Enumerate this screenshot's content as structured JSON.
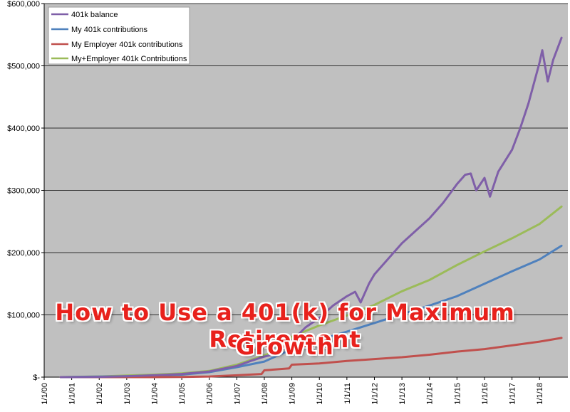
{
  "chart_data": {
    "type": "line",
    "title": "",
    "xlabel": "",
    "ylabel": "",
    "ylim": [
      0,
      600000
    ],
    "y_ticks": [
      0,
      100000,
      200000,
      300000,
      400000,
      500000,
      600000
    ],
    "y_tick_labels": [
      "$-",
      "$100,000",
      "$200,000",
      "$300,000",
      "$400,000",
      "$500,000",
      "$600,000"
    ],
    "x_range": [
      2000,
      2019.03
    ],
    "x_ticks": [
      2000,
      2001,
      2002,
      2003,
      2004,
      2005,
      2006,
      2007,
      2008,
      2009,
      2010,
      2011,
      2012,
      2013,
      2014,
      2015,
      2016,
      2017,
      2018
    ],
    "x_tick_labels": [
      "1/1/00",
      "1/1/01",
      "1/1/02",
      "1/1/03",
      "1/1/04",
      "1/1/05",
      "1/1/06",
      "1/1/07",
      "1/1/08",
      "1/1/09",
      "1/1/10",
      "1/1/11",
      "1/1/12",
      "1/1/13",
      "1/1/14",
      "1/1/15",
      "1/1/16",
      "1/1/17",
      "1/1/18"
    ],
    "grid": "horizontal",
    "legend_position": "top-left",
    "series": [
      {
        "name": "401k balance",
        "color": "#7f5fa8",
        "x": [
          2000.6,
          2001,
          2002,
          2003,
          2004,
          2005,
          2006,
          2007,
          2007.5,
          2008,
          2008.5,
          2009,
          2009.5,
          2010,
          2010.5,
          2011,
          2011.3,
          2011.5,
          2011.8,
          2012,
          2012.5,
          2013,
          2013.5,
          2014,
          2014.5,
          2015,
          2015.3,
          2015.5,
          2015.7,
          2016,
          2016.2,
          2016.5,
          2017,
          2017.3,
          2017.6,
          2018,
          2018.1,
          2018.3,
          2018.5,
          2018.8
        ],
        "y": [
          0,
          0,
          500,
          1500,
          3000,
          5000,
          9000,
          18000,
          26000,
          33000,
          38000,
          58000,
          80000,
          95000,
          115000,
          130000,
          137000,
          120000,
          150000,
          165000,
          190000,
          215000,
          235000,
          255000,
          280000,
          310000,
          325000,
          327000,
          300000,
          320000,
          290000,
          330000,
          365000,
          400000,
          440000,
          505000,
          525000,
          475000,
          510000,
          545000
        ]
      },
      {
        "name": "My 401k contributions",
        "color": "#4f81bd",
        "x": [
          2000.6,
          2001,
          2002,
          2003,
          2004,
          2005,
          2006,
          2007,
          2008,
          2009,
          2010,
          2011,
          2012,
          2013,
          2014,
          2015,
          2016,
          2017,
          2018,
          2018.8
        ],
        "y": [
          0,
          300,
          800,
          1500,
          2500,
          4000,
          8000,
          16000,
          25000,
          45000,
          60000,
          73000,
          87000,
          101000,
          115000,
          130000,
          150000,
          170000,
          189000,
          211000
        ]
      },
      {
        "name": "My Employer 401k contributions",
        "color": "#c0504d",
        "x": [
          2000.6,
          2002,
          2003,
          2004,
          2005,
          2006,
          2007,
          2007.9,
          2008,
          2008.9,
          2009,
          2010,
          2011,
          2012,
          2013,
          2014,
          2015,
          2016,
          2017,
          2018,
          2018.8
        ],
        "y": [
          0,
          0,
          0,
          0,
          200,
          1000,
          3000,
          5000,
          11000,
          14000,
          20000,
          22000,
          26000,
          29000,
          32000,
          36000,
          41000,
          45000,
          51000,
          57000,
          63000
        ]
      },
      {
        "name": "My+Employer 401k Contributions",
        "color": "#9bbb59",
        "x": [
          2000.6,
          2001,
          2002,
          2003,
          2004,
          2005,
          2006,
          2007,
          2008,
          2008.9,
          2009,
          2010,
          2011,
          2012,
          2013,
          2014,
          2015,
          2016,
          2017,
          2018,
          2018.8
        ],
        "y": [
          0,
          500,
          1000,
          2500,
          4000,
          6000,
          10000,
          20000,
          35000,
          50000,
          65000,
          83000,
          99000,
          116000,
          138000,
          156000,
          180000,
          202000,
          223000,
          246000,
          274000
        ]
      }
    ]
  },
  "headline": {
    "line1": "How to Use a 401(k) for Maximum Retirement",
    "line2": "Growth"
  }
}
